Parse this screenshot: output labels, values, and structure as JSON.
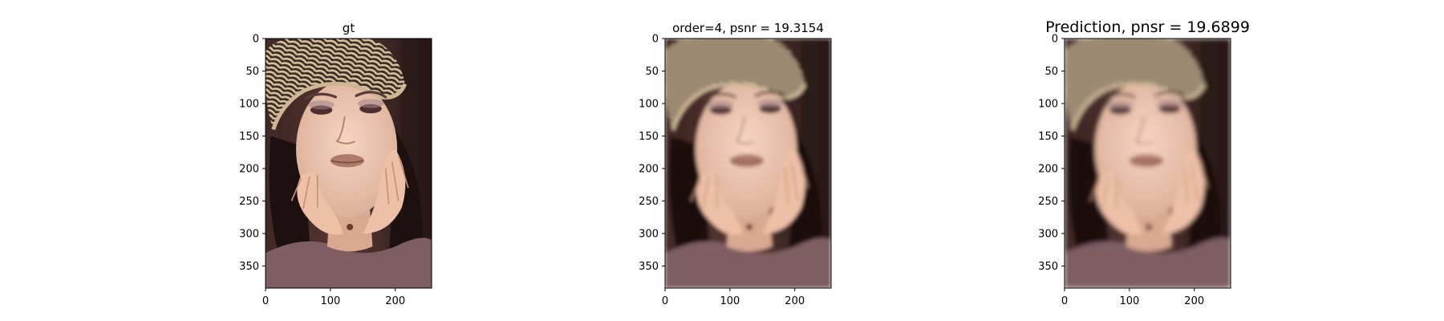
{
  "figure": {
    "panels": [
      {
        "title": "gt",
        "variant": "sharp"
      },
      {
        "title": "order=4, psnr = 19.3154",
        "variant": "blur"
      },
      {
        "title": "Prediction, pnsr = 19.6899",
        "variant": "blur"
      }
    ]
  },
  "chart_data": [
    {
      "type": "image",
      "title": "gt",
      "xlim": [
        0,
        256
      ],
      "ylim": [
        384,
        0
      ],
      "xticks": [
        0,
        100,
        200
      ],
      "yticks": [
        0,
        50,
        100,
        150,
        200,
        250,
        300,
        350
      ],
      "content": "portrait photo (ground truth)"
    },
    {
      "type": "image",
      "title": "order=4, psnr = 19.3154",
      "xlim": [
        0,
        256
      ],
      "ylim": [
        384,
        0
      ],
      "xticks": [
        0,
        100,
        200
      ],
      "yticks": [
        0,
        50,
        100,
        150,
        200,
        250,
        300,
        350
      ],
      "content": "portrait photo (blurred reconstruction)"
    },
    {
      "type": "image",
      "title": "Prediction, pnsr = 19.6899",
      "xlim": [
        0,
        256
      ],
      "ylim": [
        384,
        0
      ],
      "xticks": [
        0,
        100,
        200
      ],
      "yticks": [
        0,
        50,
        100,
        150,
        200,
        250,
        300,
        350
      ],
      "content": "portrait photo (predicted reconstruction)"
    }
  ],
  "colors": {
    "background": "#ffffff",
    "axes": "#000000",
    "image_bg_dark": "#2a1a17",
    "hat": "#cdb595",
    "skin": "#ecc3ac",
    "hair": "#1c1010",
    "sweater": "#7e5d63",
    "lips": "#b07a68"
  }
}
